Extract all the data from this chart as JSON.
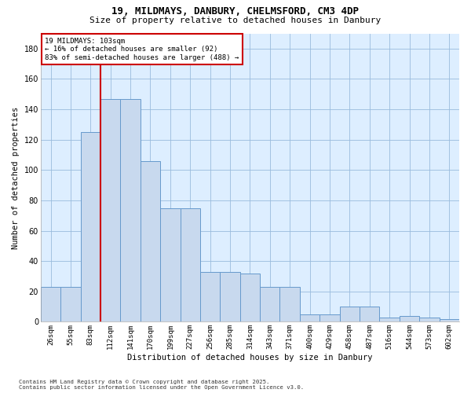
{
  "title1": "19, MILDMAYS, DANBURY, CHELMSFORD, CM3 4DP",
  "title2": "Size of property relative to detached houses in Danbury",
  "xlabel": "Distribution of detached houses by size in Danbury",
  "ylabel": "Number of detached properties",
  "bar_labels": [
    "26sqm",
    "55sqm",
    "83sqm",
    "112sqm",
    "141sqm",
    "170sqm",
    "199sqm",
    "227sqm",
    "256sqm",
    "285sqm",
    "314sqm",
    "343sqm",
    "371sqm",
    "400sqm",
    "429sqm",
    "458sqm",
    "487sqm",
    "516sqm",
    "544sqm",
    "573sqm",
    "602sqm"
  ],
  "bar_values": [
    23,
    23,
    125,
    147,
    147,
    106,
    75,
    75,
    33,
    33,
    32,
    23,
    23,
    5,
    5,
    10,
    10,
    3,
    4,
    3,
    2
  ],
  "bar_color": "#c8d9ee",
  "bar_edge_color": "#6699cc",
  "vline_color": "#cc0000",
  "vline_x_idx": 3,
  "annotation_text": "19 MILDMAYS: 103sqm\n← 16% of detached houses are smaller (92)\n83% of semi-detached houses are larger (488) →",
  "annotation_box_facecolor": "#ffffff",
  "annotation_box_edgecolor": "#cc0000",
  "ylim": [
    0,
    190
  ],
  "yticks": [
    0,
    20,
    40,
    60,
    80,
    100,
    120,
    140,
    160,
    180
  ],
  "grid_color": "#99bbdd",
  "plot_bg_color": "#ddeeff",
  "fig_bg_color": "#ffffff",
  "footer1": "Contains HM Land Registry data © Crown copyright and database right 2025.",
  "footer2": "Contains public sector information licensed under the Open Government Licence v3.0."
}
